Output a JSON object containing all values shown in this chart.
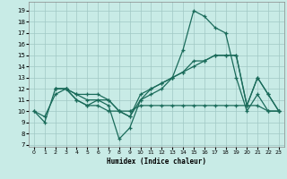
{
  "bg_color": "#c8ebe6",
  "grid_color": "#a0c8c4",
  "line_color": "#1a6b5a",
  "xlim": [
    -0.5,
    23.5
  ],
  "ylim_min": 6.8,
  "ylim_max": 19.8,
  "xticks": [
    0,
    1,
    2,
    3,
    4,
    5,
    6,
    7,
    8,
    9,
    10,
    11,
    12,
    13,
    14,
    15,
    16,
    17,
    18,
    19,
    20,
    21,
    22,
    23
  ],
  "yticks": [
    7,
    8,
    9,
    10,
    11,
    12,
    13,
    14,
    15,
    16,
    17,
    18,
    19
  ],
  "xlabel": "Humidex (Indice chaleur)",
  "line1_x": [
    0,
    1,
    2,
    3,
    4,
    5,
    6,
    7,
    8,
    9,
    10,
    11,
    12,
    13,
    14,
    15,
    16,
    17,
    18,
    19,
    20,
    21,
    22,
    23
  ],
  "line1_y": [
    10,
    9,
    12,
    12,
    11,
    10.5,
    11,
    10.5,
    7.5,
    8.5,
    11,
    11.5,
    12,
    13,
    15.5,
    19,
    18.5,
    17.5,
    17,
    13,
    10,
    11.5,
    10,
    10
  ],
  "line2_x": [
    2,
    3,
    4,
    5,
    6,
    7,
    8,
    9,
    10,
    11,
    12,
    13,
    14,
    15,
    16,
    17,
    18,
    19,
    20,
    21,
    22,
    23
  ],
  "line2_y": [
    12,
    12,
    11.5,
    11,
    11,
    11,
    10,
    9.5,
    11,
    12,
    12.5,
    13,
    13.5,
    14.5,
    14.5,
    15,
    15,
    15,
    10.5,
    13,
    11.5,
    10
  ],
  "line3_x": [
    2,
    3,
    4,
    5,
    6,
    7,
    8,
    9,
    10,
    11,
    12,
    13,
    14,
    15,
    16,
    17,
    18,
    19,
    20,
    21,
    22,
    23
  ],
  "line3_y": [
    12,
    12,
    11.5,
    11.5,
    11.5,
    11,
    10,
    9.5,
    11.5,
    12,
    12.5,
    13,
    13.5,
    14,
    14.5,
    15,
    15,
    15,
    10.5,
    13,
    11.5,
    10
  ],
  "line4_x": [
    0,
    1,
    2,
    3,
    4,
    5,
    6,
    7,
    8,
    9,
    10,
    11,
    12,
    13,
    14,
    15,
    16,
    17,
    18,
    19,
    20,
    21,
    22,
    23
  ],
  "line4_y": [
    10,
    9.5,
    11.5,
    12,
    11,
    10.5,
    10.5,
    10,
    10,
    10,
    10.5,
    10.5,
    10.5,
    10.5,
    10.5,
    10.5,
    10.5,
    10.5,
    10.5,
    10.5,
    10.5,
    10.5,
    10,
    10
  ]
}
